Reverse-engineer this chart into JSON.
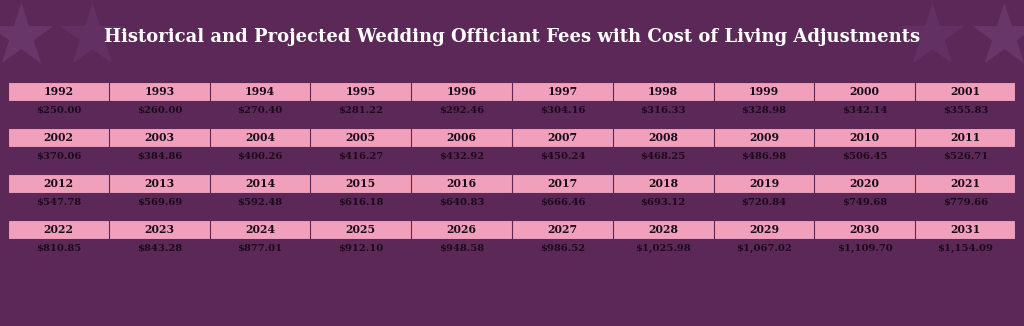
{
  "title": "Historical and Projected Wedding Officiant Fees with Cost of Living Adjustments",
  "title_color": "#FFFFFF",
  "title_bg": "#5C2857",
  "table_header_bg": "#F0A0BB",
  "table_value_bg": "#FAE8EE",
  "table_border_color": "#5C2857",
  "separator_color": "#5C2857",
  "background_color": "#5C2857",
  "footer_color": "#7B4080",
  "rows": [
    {
      "years": [
        "1992",
        "1993",
        "1994",
        "1995",
        "1996",
        "1997",
        "1998",
        "1999",
        "2000",
        "2001"
      ],
      "values": [
        "$250.00",
        "$260.00",
        "$270.40",
        "$281.22",
        "$292.46",
        "$304.16",
        "$316.33",
        "$328.98",
        "$342.14",
        "$355.83"
      ]
    },
    {
      "years": [
        "2002",
        "2003",
        "2004",
        "2005",
        "2006",
        "2007",
        "2008",
        "2009",
        "2010",
        "2011"
      ],
      "values": [
        "$370.06",
        "$384.86",
        "$400.26",
        "$416.27",
        "$432.92",
        "$450.24",
        "$468.25",
        "$486.98",
        "$506.45",
        "$526.71"
      ]
    },
    {
      "years": [
        "2012",
        "2013",
        "2014",
        "2015",
        "2016",
        "2017",
        "2018",
        "2019",
        "2020",
        "2021"
      ],
      "values": [
        "$547.78",
        "$569.69",
        "$592.48",
        "$616.18",
        "$640.83",
        "$666.46",
        "$693.12",
        "$720.84",
        "$749.68",
        "$779.66"
      ]
    },
    {
      "years": [
        "2022",
        "2023",
        "2024",
        "2025",
        "2026",
        "2027",
        "2028",
        "2029",
        "2030",
        "2031"
      ],
      "values": [
        "$810.85",
        "$843.28",
        "$877.01",
        "$912.10",
        "$948.58",
        "$986.52",
        "$1,025.98",
        "$1,067.02",
        "$1,109.70",
        "$1,154.09"
      ]
    }
  ]
}
